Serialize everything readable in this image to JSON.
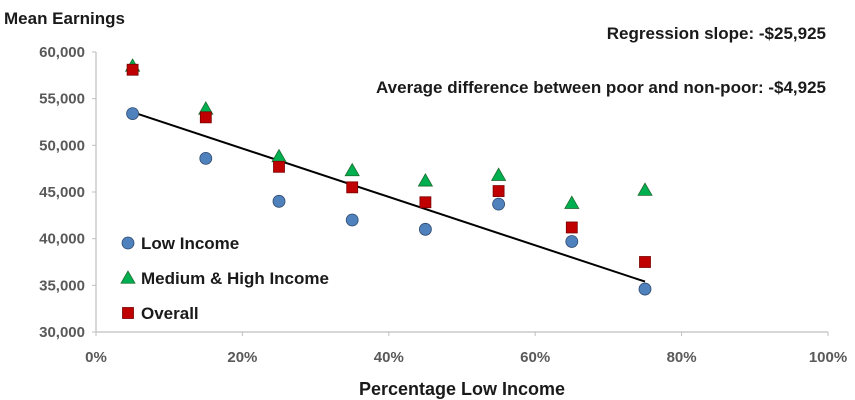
{
  "chart_data": {
    "type": "scatter",
    "title": "",
    "ylabel": "Mean Earnings",
    "xlabel": "Percentage Low Income",
    "x_ticks": [
      "0%",
      "20%",
      "40%",
      "60%",
      "80%",
      "100%"
    ],
    "y_ticks": [
      "30,000",
      "35,000",
      "40,000",
      "45,000",
      "50,000",
      "55,000",
      "60,000"
    ],
    "xlim": [
      0,
      1
    ],
    "ylim": [
      30000,
      60000
    ],
    "grid": false,
    "legend_position": "left",
    "x": [
      0.05,
      0.15,
      0.25,
      0.35,
      0.45,
      0.55,
      0.65,
      0.75
    ],
    "series": [
      {
        "name": "Low Income",
        "marker": "circle",
        "color": "#4f81bd",
        "values": [
          53400,
          48600,
          44000,
          42000,
          41000,
          43700,
          39700,
          34600
        ]
      },
      {
        "name": "Medium & High Income",
        "marker": "triangle",
        "color": "#00b050",
        "values": [
          58500,
          53900,
          48800,
          47300,
          46200,
          46800,
          43800,
          45200
        ]
      },
      {
        "name": "Overall",
        "marker": "square",
        "color": "#c00000",
        "values": [
          58100,
          53000,
          47700,
          45500,
          43900,
          45100,
          41200,
          37500
        ]
      }
    ],
    "regression_line": {
      "x": [
        0.05,
        0.75
      ],
      "y": [
        53550,
        35400
      ],
      "color": "#000000"
    },
    "annotations": [
      "Regression slope: -$25,925",
      "Average difference between poor and non-poor: -$4,925"
    ]
  }
}
